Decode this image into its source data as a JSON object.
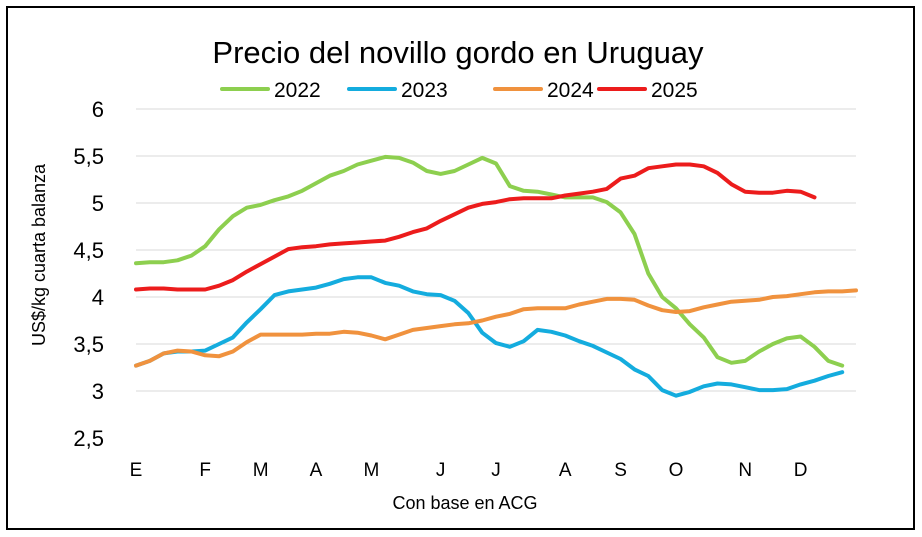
{
  "chart_data": {
    "type": "line",
    "title": "Precio del novillo gordo en Uruguay",
    "xlabel": "Con base en ACG",
    "ylabel": "US$/kg cuarta balanza",
    "ylim": [
      2.5,
      6
    ],
    "yticks": [
      "2,5",
      "3",
      "3,5",
      "4",
      "4,5",
      "5",
      "5,5",
      "6"
    ],
    "yticks_values": [
      2.5,
      3,
      3.5,
      4,
      4.5,
      5,
      5.5,
      6
    ],
    "xticks": [
      "E",
      "F",
      "M",
      "A",
      "M",
      "J",
      "J",
      "A",
      "S",
      "O",
      "N",
      "D"
    ],
    "xticks_week": [
      1,
      6,
      10,
      14,
      18,
      23,
      27,
      32,
      36,
      40,
      45,
      49
    ],
    "x_range_week": [
      1,
      53
    ],
    "grid": true,
    "legend_position": "top",
    "series": [
      {
        "name": "2022",
        "color": "#8dcf4f",
        "x": [
          1,
          2,
          3,
          4,
          5,
          6,
          7,
          8,
          9,
          10,
          11,
          12,
          13,
          14,
          15,
          16,
          17,
          18,
          19,
          20,
          21,
          22,
          23,
          24,
          25,
          26,
          27,
          28,
          29,
          30,
          31,
          32,
          33,
          34,
          35,
          36,
          37,
          38,
          39,
          40,
          41,
          42,
          43,
          44,
          45,
          46,
          47,
          48,
          49,
          50,
          51,
          52
        ],
        "values": [
          4.36,
          4.37,
          4.37,
          4.39,
          4.44,
          4.54,
          4.72,
          4.86,
          4.95,
          4.98,
          5.03,
          5.07,
          5.13,
          5.21,
          5.29,
          5.34,
          5.41,
          5.45,
          5.49,
          5.48,
          5.43,
          5.34,
          5.31,
          5.34,
          5.41,
          5.48,
          5.42,
          5.18,
          5.13,
          5.12,
          5.09,
          5.06,
          5.06,
          5.06,
          5.01,
          4.9,
          4.67,
          4.25,
          4.0,
          3.88,
          3.71,
          3.57,
          3.36,
          3.3,
          3.32,
          3.42,
          3.5,
          3.56,
          3.58,
          3.47,
          3.32,
          3.27
        ]
      },
      {
        "name": "2023",
        "color": "#14acde",
        "x": [
          1,
          2,
          3,
          4,
          5,
          6,
          7,
          8,
          9,
          10,
          11,
          12,
          13,
          14,
          15,
          16,
          17,
          18,
          19,
          20,
          21,
          22,
          23,
          24,
          25,
          26,
          27,
          28,
          29,
          30,
          31,
          32,
          33,
          34,
          35,
          36,
          37,
          38,
          39,
          40,
          41,
          42,
          43,
          44,
          45,
          46,
          47,
          48,
          49,
          50,
          51,
          52
        ],
        "values": [
          3.27,
          3.32,
          3.4,
          3.42,
          3.42,
          3.43,
          3.5,
          3.57,
          3.73,
          3.87,
          4.02,
          4.06,
          4.08,
          4.1,
          4.14,
          4.19,
          4.21,
          4.21,
          4.15,
          4.12,
          4.06,
          4.03,
          4.02,
          3.96,
          3.83,
          3.62,
          3.51,
          3.47,
          3.53,
          3.65,
          3.63,
          3.59,
          3.53,
          3.48,
          3.41,
          3.34,
          3.23,
          3.16,
          3.01,
          2.95,
          2.99,
          3.05,
          3.08,
          3.07,
          3.04,
          3.01,
          3.01,
          3.02,
          3.07,
          3.11,
          3.16,
          3.2
        ]
      },
      {
        "name": "2024",
        "color": "#f0923e",
        "x": [
          1,
          2,
          3,
          4,
          5,
          6,
          7,
          8,
          9,
          10,
          11,
          12,
          13,
          14,
          15,
          16,
          17,
          18,
          19,
          20,
          21,
          22,
          23,
          24,
          25,
          26,
          27,
          28,
          29,
          30,
          31,
          32,
          33,
          34,
          35,
          36,
          37,
          38,
          39,
          40,
          41,
          42,
          43,
          44,
          45,
          46,
          47,
          48,
          49,
          50,
          51,
          52,
          53
        ],
        "values": [
          3.27,
          3.32,
          3.4,
          3.43,
          3.42,
          3.38,
          3.37,
          3.42,
          3.52,
          3.6,
          3.6,
          3.6,
          3.6,
          3.61,
          3.61,
          3.63,
          3.62,
          3.59,
          3.55,
          3.6,
          3.65,
          3.67,
          3.69,
          3.71,
          3.72,
          3.75,
          3.79,
          3.82,
          3.87,
          3.88,
          3.88,
          3.88,
          3.92,
          3.95,
          3.98,
          3.98,
          3.97,
          3.91,
          3.86,
          3.84,
          3.85,
          3.89,
          3.92,
          3.95,
          3.96,
          3.97,
          4.0,
          4.01,
          4.03,
          4.05,
          4.06,
          4.06,
          4.07
        ]
      },
      {
        "name": "2025",
        "color": "#ec1c1c",
        "x": [
          1,
          2,
          3,
          4,
          5,
          6,
          7,
          8,
          9,
          10,
          11,
          12,
          13,
          14,
          15,
          16,
          17,
          18,
          19,
          20,
          21,
          22,
          23,
          24,
          25,
          26,
          27,
          28,
          29,
          30,
          31,
          32,
          33,
          34,
          35,
          36,
          37,
          38,
          39,
          40,
          41,
          42,
          43,
          44,
          45,
          46,
          47,
          48,
          49,
          50
        ],
        "values": [
          4.08,
          4.09,
          4.09,
          4.08,
          4.08,
          4.08,
          4.12,
          4.18,
          4.27,
          4.35,
          4.43,
          4.51,
          4.53,
          4.54,
          4.56,
          4.57,
          4.58,
          4.59,
          4.6,
          4.64,
          4.69,
          4.73,
          4.81,
          4.88,
          4.95,
          4.99,
          5.01,
          5.04,
          5.05,
          5.05,
          5.05,
          5.08,
          5.1,
          5.12,
          5.15,
          5.26,
          5.29,
          5.37,
          5.39,
          5.41,
          5.41,
          5.39,
          5.32,
          5.2,
          5.12,
          5.11,
          5.11,
          5.13,
          5.12,
          5.06
        ]
      }
    ]
  }
}
